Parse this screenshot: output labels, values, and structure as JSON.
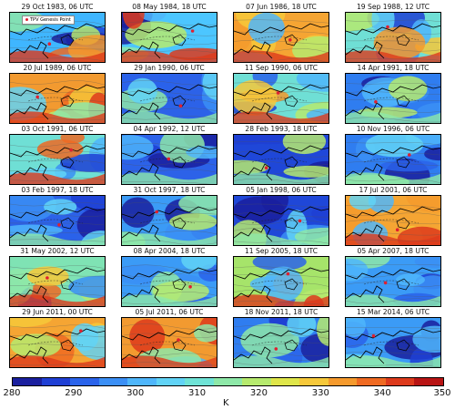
{
  "panels": [
    {
      "title": "29 Oct 1983, 06 UTC",
      "base": "#3fb6ff",
      "tone": "mixed"
    },
    {
      "title": "08 May 1984, 18 UTC",
      "base": "#4cc6ff",
      "tone": "mixed"
    },
    {
      "title": "07 Jun 1986, 18 UTC",
      "base": "#f5a533",
      "tone": "warm"
    },
    {
      "title": "19 Sep 1988, 12 UTC",
      "base": "#6fdfd5",
      "tone": "mixed"
    },
    {
      "title": "20 Jul 1989, 06 UTC",
      "base": "#f29a30",
      "tone": "warm"
    },
    {
      "title": "29 Jan 1990, 06 UTC",
      "base": "#2c62e8",
      "tone": "cold"
    },
    {
      "title": "11 Sep 1990, 06 UTC",
      "base": "#6fdfd5",
      "tone": "mixed"
    },
    {
      "title": "14 Apr 1991, 18 UTC",
      "base": "#2f7df0",
      "tone": "cold"
    },
    {
      "title": "03 Oct 1991, 06 UTC",
      "base": "#6fdfd5",
      "tone": "mixed"
    },
    {
      "title": "04 Apr 1992, 12 UTC",
      "base": "#2c62e8",
      "tone": "cold"
    },
    {
      "title": "28 Feb 1993, 18 UTC",
      "base": "#1f47d8",
      "tone": "cold"
    },
    {
      "title": "10 Nov 1996, 06 UTC",
      "base": "#2f7df0",
      "tone": "cold"
    },
    {
      "title": "03 Feb 1997, 18 UTC",
      "base": "#2c62e8",
      "tone": "cold"
    },
    {
      "title": "31 Oct 1997, 18 UTC",
      "base": "#3b9bf6",
      "tone": "cold"
    },
    {
      "title": "05 Jan 1998, 06 UTC",
      "base": "#1f47d8",
      "tone": "cold"
    },
    {
      "title": "17 Jul 2001, 06 UTC",
      "base": "#f5a533",
      "tone": "warm"
    },
    {
      "title": "31 May 2002, 12 UTC",
      "base": "#7fe3b4",
      "tone": "mixed"
    },
    {
      "title": "08 Apr 2004, 18 UTC",
      "base": "#3b9bf6",
      "tone": "cold"
    },
    {
      "title": "11 Sep 2005, 18 UTC",
      "base": "#a6e46a",
      "tone": "mixed"
    },
    {
      "title": "05 Apr 2007, 18 UTC",
      "base": "#3b9bf6",
      "tone": "cold"
    },
    {
      "title": "29 Jun 2011, 00 UTC",
      "base": "#f5a533",
      "tone": "warm"
    },
    {
      "title": "05 Jul 2011, 06 UTC",
      "base": "#f29a30",
      "tone": "warm"
    },
    {
      "title": "18 Nov 2011, 18 UTC",
      "base": "#2f7df0",
      "tone": "cold"
    },
    {
      "title": "15 Mar 2014, 06 UTC",
      "base": "#3b9bf6",
      "tone": "cold"
    }
  ],
  "legend_label": "TPV Genesis Point",
  "colorbar": {
    "ticks": [
      "280",
      "290",
      "300",
      "310",
      "320",
      "330",
      "340",
      "350"
    ],
    "unit": "K",
    "colors": [
      "#1a1f9e",
      "#1f3fd4",
      "#2a63ea",
      "#3b8ff5",
      "#4fb6fb",
      "#61d3f6",
      "#6fe3d6",
      "#8ee8a8",
      "#b6ea6e",
      "#dfe64a",
      "#f6c83a",
      "#f59a2d",
      "#ef6a22",
      "#dd3a1c",
      "#b81414"
    ]
  }
}
